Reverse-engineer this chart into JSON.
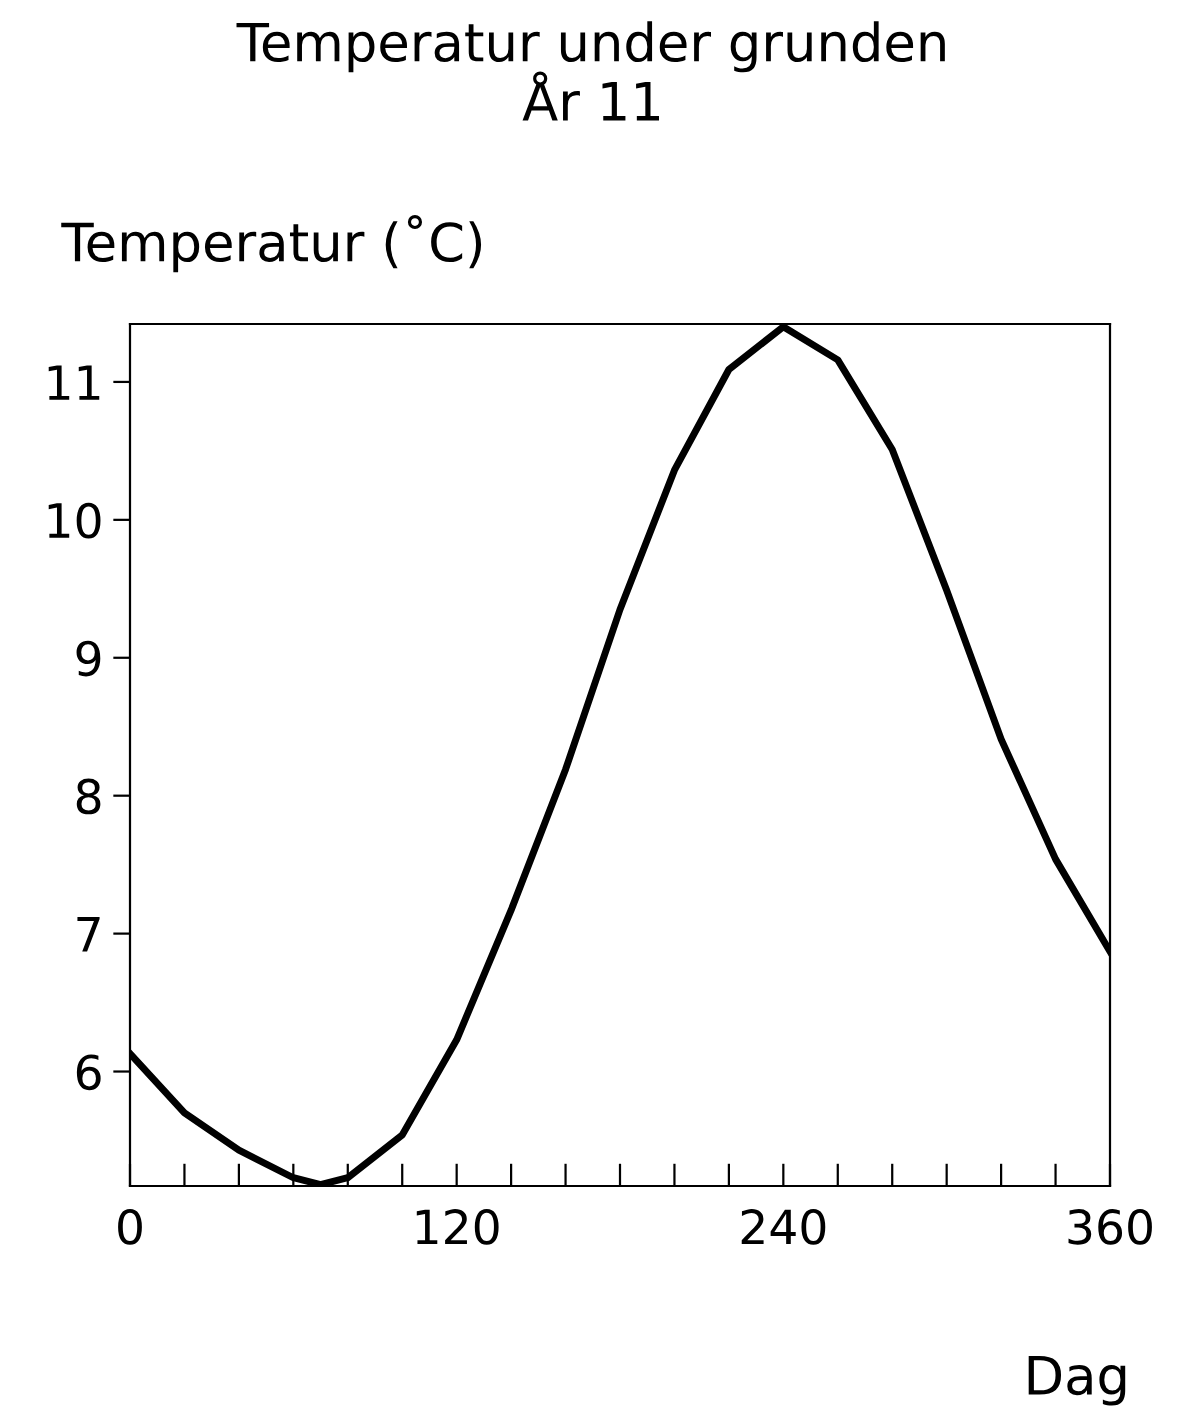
{
  "chart_data": {
    "type": "line",
    "title": "Temperatur under grunden\nÅr 11",
    "ylabel": "Temperatur (˚C)",
    "xlabel": "Dag",
    "x": [
      0,
      20,
      40,
      60,
      70,
      80,
      100,
      120,
      140,
      160,
      180,
      200,
      220,
      240,
      260,
      280,
      300,
      320,
      340,
      360
    ],
    "series": [
      {
        "color": "#000000",
        "values": [
          6.13,
          5.7,
          5.43,
          5.23,
          5.18,
          5.23,
          5.54,
          6.23,
          7.17,
          8.19,
          9.35,
          10.36,
          11.09,
          11.4,
          11.16,
          10.51,
          9.49,
          8.41,
          7.54,
          6.87
        ]
      }
    ],
    "xlim": [
      0,
      360
    ],
    "ylim": [
      5.17,
      11.42
    ],
    "xticks": [
      0,
      {
        "value": 20,
        "label": null
      },
      {
        "value": 40,
        "label": null
      },
      {
        "value": 60,
        "label": null
      },
      {
        "value": 80,
        "label": null
      },
      {
        "value": 100,
        "label": null
      },
      120,
      {
        "value": 140,
        "label": null
      },
      {
        "value": 160,
        "label": null
      },
      {
        "value": 180,
        "label": null
      },
      {
        "value": 200,
        "label": null
      },
      {
        "value": 220,
        "label": null
      },
      240,
      {
        "value": 260,
        "label": null
      },
      {
        "value": 280,
        "label": null
      },
      {
        "value": 300,
        "label": null
      },
      {
        "value": 320,
        "label": null
      },
      {
        "value": 340,
        "label": null
      },
      360
    ],
    "yticks": [
      6,
      7,
      8,
      9,
      10,
      11
    ],
    "grid": false,
    "legend": false,
    "marker": "none",
    "line_style": "solid"
  }
}
